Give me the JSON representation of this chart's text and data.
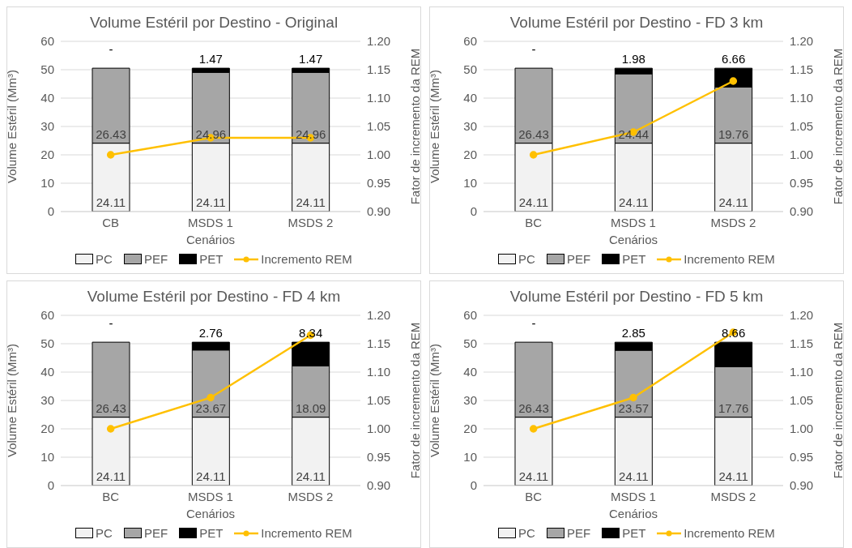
{
  "chart_data": [
    {
      "type": "bar",
      "title": "Volume Estéril por Destino - Original",
      "xlabel": "Cenários",
      "ylabel": "Volume Estéril (Mm³)",
      "y2label": "Fator de incremento da REM",
      "categories": [
        "CB",
        "MSDS 1",
        "MSDS 2"
      ],
      "stacked": true,
      "legend": "bottom",
      "grid": "y",
      "ylim": [
        0,
        60
      ],
      "yticks": [
        0,
        10,
        20,
        30,
        40,
        50,
        60
      ],
      "y2lim": [
        0.9,
        1.2
      ],
      "y2ticks": [
        {
          "value": 0.9,
          "label": "0.90"
        },
        {
          "value": 0.95,
          "label": "0.95"
        },
        {
          "value": 1.0,
          "label": "1.00"
        },
        {
          "value": 1.05,
          "label": "1.05"
        },
        {
          "value": 1.1,
          "label": "1.10"
        },
        {
          "value": 1.15,
          "label": "1.15"
        },
        {
          "value": 1.2,
          "label": "1.20"
        }
      ],
      "series": [
        {
          "name": "PC",
          "color": "#f2f2f2",
          "values": [
            24.11,
            24.11,
            24.11
          ],
          "value_labels": [
            "24.11",
            "24.11",
            "24.11"
          ]
        },
        {
          "name": "PEF",
          "color": "#a6a6a6",
          "values": [
            26.43,
            24.96,
            24.96
          ],
          "value_labels": [
            "26.43",
            "24.96",
            "24.96"
          ]
        },
        {
          "name": "PET",
          "color": "#000000",
          "values": [
            0,
            1.47,
            1.47
          ],
          "value_labels": [
            "-",
            "1.47",
            "1.47"
          ]
        },
        {
          "name": "Incremento REM",
          "type": "line",
          "axis": "y2",
          "color": "#ffc000",
          "marker": "circle",
          "values": [
            1.0,
            1.03,
            1.03
          ]
        }
      ]
    },
    {
      "type": "bar",
      "title": "Volume Estéril por Destino - FD 3 km",
      "xlabel": "Cenários",
      "ylabel": "Volume Estéril (Mm³)",
      "y2label": "Fator de incremento da REM",
      "categories": [
        "BC",
        "MSDS 1",
        "MSDS 2"
      ],
      "stacked": true,
      "legend": "bottom",
      "grid": "y",
      "ylim": [
        0,
        60
      ],
      "yticks": [
        0,
        10,
        20,
        30,
        40,
        50,
        60
      ],
      "y2lim": [
        0.9,
        1.2
      ],
      "y2ticks": [
        {
          "value": 0.9,
          "label": "0.90"
        },
        {
          "value": 0.95,
          "label": "0.95"
        },
        {
          "value": 1.0,
          "label": "1.00"
        },
        {
          "value": 1.05,
          "label": "1.05"
        },
        {
          "value": 1.1,
          "label": "1.10"
        },
        {
          "value": 1.15,
          "label": "1.15"
        },
        {
          "value": 1.2,
          "label": "1.20"
        }
      ],
      "series": [
        {
          "name": "PC",
          "color": "#f2f2f2",
          "values": [
            24.11,
            24.11,
            24.11
          ],
          "value_labels": [
            "24.11",
            "24.11",
            "24.11"
          ]
        },
        {
          "name": "PEF",
          "color": "#a6a6a6",
          "values": [
            26.43,
            24.44,
            19.76
          ],
          "value_labels": [
            "26.43",
            "24.44",
            "19.76"
          ]
        },
        {
          "name": "PET",
          "color": "#000000",
          "values": [
            0,
            1.98,
            6.66
          ],
          "value_labels": [
            "-",
            "1.98",
            "6.66"
          ]
        },
        {
          "name": "Incremento REM",
          "type": "line",
          "axis": "y2",
          "color": "#ffc000",
          "marker": "circle",
          "values": [
            1.0,
            1.04,
            1.13
          ]
        }
      ]
    },
    {
      "type": "bar",
      "title": "Volume Estéril por Destino - FD 4 km",
      "xlabel": "Cenários",
      "ylabel": "Volume Estéril (Mm³)",
      "y2label": "Fator de incremento da REM",
      "categories": [
        "BC",
        "MSDS 1",
        "MSDS 2"
      ],
      "stacked": true,
      "legend": "bottom",
      "grid": "y",
      "ylim": [
        0,
        60
      ],
      "yticks": [
        0,
        10,
        20,
        30,
        40,
        50,
        60
      ],
      "y2lim": [
        0.9,
        1.2
      ],
      "y2ticks": [
        {
          "value": 0.9,
          "label": "0.90"
        },
        {
          "value": 0.95,
          "label": "0.95"
        },
        {
          "value": 1.0,
          "label": "1.00"
        },
        {
          "value": 1.05,
          "label": "1.05"
        },
        {
          "value": 1.1,
          "label": "1.10"
        },
        {
          "value": 1.15,
          "label": "1.15"
        },
        {
          "value": 1.2,
          "label": "1.20"
        }
      ],
      "series": [
        {
          "name": "PC",
          "color": "#f2f2f2",
          "values": [
            24.11,
            24.11,
            24.11
          ],
          "value_labels": [
            "24.11",
            "24.11",
            "24.11"
          ]
        },
        {
          "name": "PEF",
          "color": "#a6a6a6",
          "values": [
            26.43,
            23.67,
            18.09
          ],
          "value_labels": [
            "26.43",
            "23.67",
            "18.09"
          ]
        },
        {
          "name": "PET",
          "color": "#000000",
          "values": [
            0,
            2.76,
            8.34
          ],
          "value_labels": [
            "-",
            "2.76",
            "8.34"
          ]
        },
        {
          "name": "Incremento REM",
          "type": "line",
          "axis": "y2",
          "color": "#ffc000",
          "marker": "circle",
          "values": [
            1.0,
            1.055,
            1.165
          ]
        }
      ]
    },
    {
      "type": "bar",
      "title": "Volume Estéril por Destino - FD 5 km",
      "xlabel": "Cenários",
      "ylabel": "Volume Estéril (Mm³)",
      "y2label": "Fator de incremento da REM",
      "categories": [
        "BC",
        "MSDS 1",
        "MSDS 2"
      ],
      "stacked": true,
      "legend": "bottom",
      "grid": "y",
      "ylim": [
        0,
        60
      ],
      "yticks": [
        0,
        10,
        20,
        30,
        40,
        50,
        60
      ],
      "y2lim": [
        0.9,
        1.2
      ],
      "y2ticks": [
        {
          "value": 0.9,
          "label": "0.90"
        },
        {
          "value": 0.95,
          "label": "0.95"
        },
        {
          "value": 1.0,
          "label": "1.00"
        },
        {
          "value": 1.05,
          "label": "1.05"
        },
        {
          "value": 1.1,
          "label": "1.10"
        },
        {
          "value": 1.15,
          "label": "1.15"
        },
        {
          "value": 1.2,
          "label": "1.20"
        }
      ],
      "series": [
        {
          "name": "PC",
          "color": "#f2f2f2",
          "values": [
            24.11,
            24.11,
            24.11
          ],
          "value_labels": [
            "24.11",
            "24.11",
            "24.11"
          ]
        },
        {
          "name": "PEF",
          "color": "#a6a6a6",
          "values": [
            26.43,
            23.57,
            17.76
          ],
          "value_labels": [
            "26.43",
            "23.57",
            "17.76"
          ]
        },
        {
          "name": "PET",
          "color": "#000000",
          "values": [
            0,
            2.85,
            8.66
          ],
          "value_labels": [
            "-",
            "2.85",
            "8.66"
          ]
        },
        {
          "name": "Incremento REM",
          "type": "line",
          "axis": "y2",
          "color": "#ffc000",
          "marker": "circle",
          "values": [
            1.0,
            1.055,
            1.17
          ]
        }
      ]
    }
  ]
}
